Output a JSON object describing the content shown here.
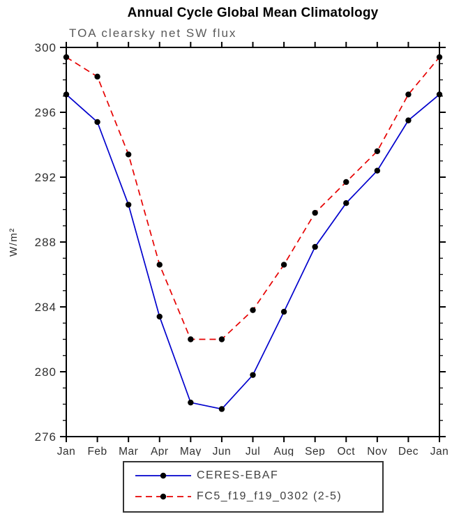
{
  "title": "Annual Cycle Global Mean Climatology",
  "chart_data": {
    "type": "line",
    "subtitle": "TOA clearsky net SW flux",
    "ylabel": "W/m²",
    "categories": [
      "Jan",
      "Feb",
      "Mar",
      "Apr",
      "May",
      "Jun",
      "Jul",
      "Aug",
      "Sep",
      "Oct",
      "Nov",
      "Dec",
      "Jan"
    ],
    "series": [
      {
        "name": "CERES-EBAF",
        "color": "#0000cd",
        "style": "solid",
        "values": [
          297.1,
          295.4,
          290.3,
          283.4,
          278.1,
          277.7,
          279.8,
          283.7,
          287.7,
          290.4,
          292.4,
          295.5,
          297.1
        ]
      },
      {
        "name": "FC5_f19_f19_0302 (2-5)",
        "color": "#e60000",
        "style": "dashed",
        "values": [
          299.4,
          298.2,
          293.4,
          286.6,
          282.0,
          282.0,
          283.8,
          286.6,
          289.8,
          291.7,
          293.6,
          297.1,
          299.4
        ]
      }
    ],
    "ylim": [
      276,
      300
    ],
    "yticks": [
      276,
      280,
      284,
      288,
      292,
      296,
      300
    ],
    "y_minor_step": 1,
    "grid": false,
    "legend_position": "bottom",
    "marker": {
      "shape": "circle",
      "color": "#000000"
    }
  },
  "colors": {
    "frame": "#000000",
    "tick_text": "#303030",
    "subtitle_text": "#595959",
    "legend_text": "#404040",
    "legend_border": "#333333"
  }
}
